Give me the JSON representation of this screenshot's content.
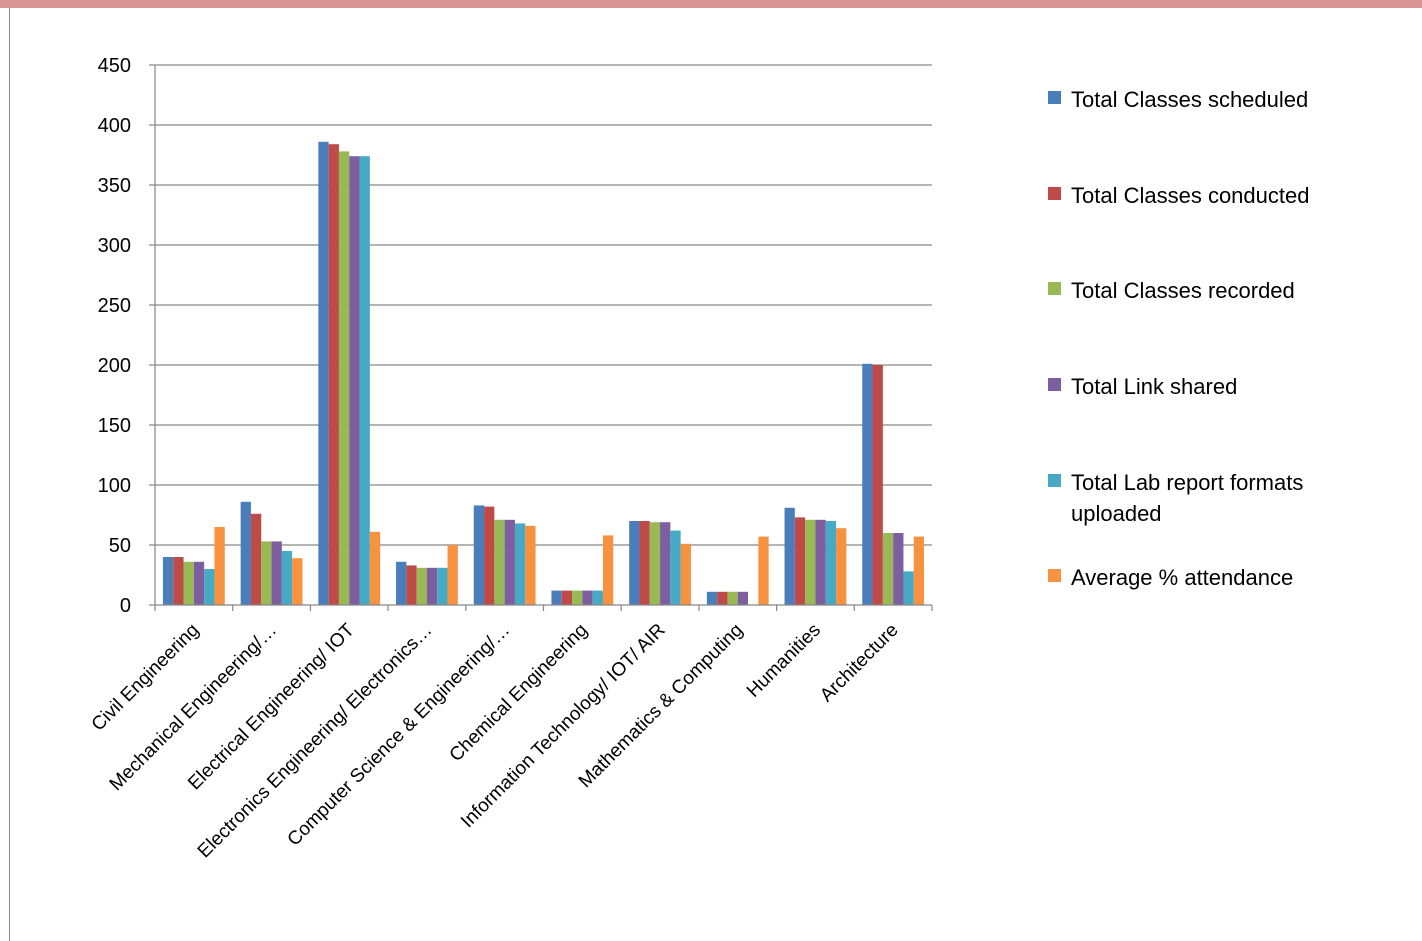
{
  "colors": {
    "top_bar": "#d99694",
    "axis": "#868686",
    "grid": "#868686"
  },
  "chart_data": {
    "type": "bar",
    "title": "",
    "xlabel": "",
    "ylabel": "",
    "ylim": [
      0,
      450
    ],
    "yticks": [
      "0",
      "50",
      "100",
      "150",
      "200",
      "250",
      "300",
      "350",
      "400",
      "450"
    ],
    "grid": true,
    "legend_position": "right",
    "categories": [
      "Civil Engineering",
      "Mechanical Engineering/…",
      "Electrical Engineering/ IOT",
      "Electronics Engineering/ Electronics…",
      "Computer Science & Engineering/…",
      "Chemical Engineering",
      "Information Technology/ IOT/ AIR",
      "Mathematics & Computing",
      "Humanities",
      "Architecture"
    ],
    "series": [
      {
        "name": "Total Classes scheduled",
        "color": "#4a7ebb",
        "values": [
          40,
          86,
          386,
          36,
          83,
          12,
          70,
          11,
          81,
          201
        ]
      },
      {
        "name": "Total Classes conducted",
        "color": "#be4b48",
        "values": [
          40,
          76,
          384,
          33,
          82,
          12,
          70,
          11,
          73,
          200
        ]
      },
      {
        "name": "Total Classes recorded",
        "color": "#98b954",
        "values": [
          36,
          53,
          378,
          31,
          71,
          12,
          69,
          11,
          71,
          60
        ]
      },
      {
        "name": "Total Link shared",
        "color": "#7d5fa0",
        "values": [
          36,
          53,
          374,
          31,
          71,
          12,
          69,
          11,
          71,
          60
        ]
      },
      {
        "name": "Total Lab report formats uploaded",
        "color": "#46aac5",
        "values": [
          30,
          45,
          374,
          31,
          68,
          12,
          62,
          0,
          70,
          28
        ]
      },
      {
        "name": "Average % attendance",
        "color": "#f69240",
        "values": [
          65,
          39,
          61,
          50,
          66,
          58,
          51,
          57,
          64,
          57
        ]
      }
    ]
  }
}
